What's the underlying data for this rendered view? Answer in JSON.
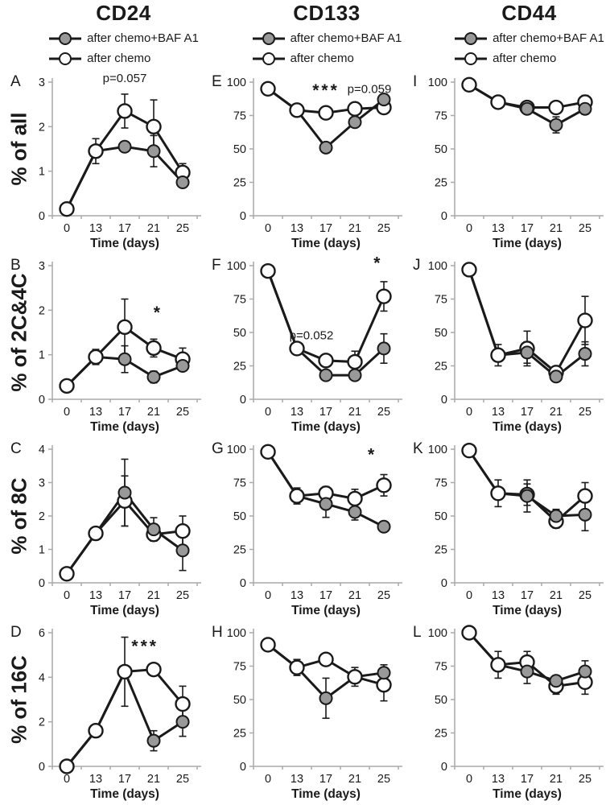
{
  "figure": {
    "column_titles": [
      "CD24",
      "CD133",
      "CD44"
    ],
    "row_labels": [
      "% of all",
      "% of 2C&4C",
      "% of 8C",
      "% of 16C"
    ],
    "legend": [
      {
        "label": "after chemo+BAF A1",
        "marker": "gray-filled-circle"
      },
      {
        "label": "after chemo",
        "marker": "open-circle"
      }
    ],
    "x_axis_label": "Time (days)",
    "x_ticks": [
      "0",
      "13",
      "17",
      "21",
      "25"
    ]
  },
  "colors": {
    "line": "#1a1a1a",
    "axis": "#a9a9a9",
    "gray_marker_fill": "#999999",
    "open_marker_fill": "#ffffff",
    "text": "#1a1a1a",
    "background": "#ffffff"
  },
  "chart_data": [
    {
      "panel": "A",
      "type": "line",
      "col": 0,
      "row": 0,
      "column_title": "CD24",
      "row_label": "% of all",
      "x": [
        0,
        13,
        17,
        21,
        25
      ],
      "ylim": [
        0,
        3
      ],
      "yticks": [
        0,
        1,
        2,
        3
      ],
      "series": [
        {
          "name": "after chemo",
          "marker": "open",
          "values": [
            0.15,
            1.45,
            2.35,
            2.0,
            0.97
          ],
          "errors": [
            0,
            0.28,
            0.38,
            0.6,
            0.2
          ],
          "markers": [
            true,
            true,
            true,
            true,
            true
          ]
        },
        {
          "name": "after chemo+BAF A1",
          "marker": "gray",
          "values": [
            0.15,
            1.45,
            1.55,
            1.45,
            0.75
          ],
          "errors": [
            0,
            0,
            0.1,
            0.35,
            0.1
          ],
          "markers": [
            false,
            false,
            true,
            true,
            true
          ]
        }
      ],
      "annotations": [
        {
          "text": "p=0.057",
          "fx": 0.5,
          "fy": -0.03,
          "kind": "p"
        }
      ]
    },
    {
      "panel": "E",
      "type": "line",
      "col": 1,
      "row": 0,
      "column_title": "CD133",
      "row_label": "% of all",
      "x": [
        0,
        13,
        17,
        21,
        25
      ],
      "ylim": [
        0,
        100
      ],
      "yticks": [
        0,
        25,
        50,
        75,
        100
      ],
      "series": [
        {
          "name": "after chemo",
          "marker": "open",
          "values": [
            95,
            79,
            77,
            80,
            81
          ],
          "errors": [
            0,
            0,
            0,
            0,
            4
          ],
          "markers": [
            true,
            true,
            true,
            true,
            true
          ]
        },
        {
          "name": "after chemo+BAF A1",
          "marker": "gray",
          "values": [
            95,
            79,
            51,
            70,
            87
          ],
          "errors": [
            0,
            0,
            0,
            0,
            3
          ],
          "markers": [
            false,
            false,
            true,
            true,
            true
          ]
        }
      ],
      "annotations": [
        {
          "text": "***",
          "fx": 0.5,
          "fy": 0.06,
          "kind": "star"
        },
        {
          "text": "p=0.059",
          "fx": 0.8,
          "fy": 0.05,
          "kind": "p"
        }
      ]
    },
    {
      "panel": "I",
      "type": "line",
      "col": 2,
      "row": 0,
      "column_title": "CD44",
      "row_label": "% of all",
      "x": [
        0,
        13,
        17,
        21,
        25
      ],
      "ylim": [
        0,
        100
      ],
      "yticks": [
        0,
        25,
        50,
        75,
        100
      ],
      "series": [
        {
          "name": "after chemo",
          "marker": "open",
          "values": [
            98,
            85,
            81,
            81,
            85
          ],
          "errors": [
            0,
            0,
            0,
            0,
            5
          ],
          "markers": [
            true,
            true,
            true,
            true,
            true
          ]
        },
        {
          "name": "after chemo+BAF A1",
          "marker": "gray",
          "values": [
            98,
            85,
            80,
            68,
            80
          ],
          "errors": [
            0,
            0,
            3,
            6,
            4
          ],
          "markers": [
            false,
            false,
            true,
            true,
            true
          ]
        }
      ],
      "annotations": []
    },
    {
      "panel": "B",
      "type": "line",
      "col": 0,
      "row": 1,
      "column_title": "CD24",
      "row_label": "% of 2C&4C",
      "x": [
        0,
        13,
        17,
        21,
        25
      ],
      "ylim": [
        0,
        3
      ],
      "yticks": [
        0,
        1,
        2,
        3
      ],
      "series": [
        {
          "name": "after chemo",
          "marker": "open",
          "values": [
            0.3,
            0.95,
            1.62,
            1.15,
            0.9
          ],
          "errors": [
            0,
            0.17,
            0.63,
            0.2,
            0.25
          ],
          "markers": [
            true,
            true,
            true,
            true,
            true
          ]
        },
        {
          "name": "after chemo+BAF A1",
          "marker": "gray",
          "values": [
            0.3,
            0.95,
            0.9,
            0.5,
            0.75
          ],
          "errors": [
            0,
            0,
            0.3,
            0.13,
            0.1
          ],
          "markers": [
            false,
            false,
            true,
            true,
            true
          ]
        }
      ],
      "annotations": [
        {
          "text": "*",
          "fx": 0.73,
          "fy": 0.35,
          "kind": "star"
        }
      ]
    },
    {
      "panel": "F",
      "type": "line",
      "col": 1,
      "row": 1,
      "column_title": "CD133",
      "row_label": "% of 2C&4C",
      "x": [
        0,
        13,
        17,
        21,
        25
      ],
      "ylim": [
        0,
        100
      ],
      "yticks": [
        0,
        25,
        50,
        75,
        100
      ],
      "series": [
        {
          "name": "after chemo",
          "marker": "open",
          "values": [
            96,
            38,
            29,
            28,
            77
          ],
          "errors": [
            0,
            2,
            4,
            8,
            11
          ],
          "markers": [
            true,
            true,
            true,
            true,
            true
          ]
        },
        {
          "name": "after chemo+BAF A1",
          "marker": "gray",
          "values": [
            96,
            38,
            18,
            18,
            38
          ],
          "errors": [
            0,
            0,
            2,
            3,
            11
          ],
          "markers": [
            false,
            false,
            true,
            true,
            true
          ]
        }
      ],
      "annotations": [
        {
          "text": "p=0.052",
          "fx": 0.4,
          "fy": 0.52,
          "kind": "p"
        },
        {
          "text": "*",
          "fx": 0.86,
          "fy": -0.02,
          "kind": "star"
        }
      ]
    },
    {
      "panel": "J",
      "type": "line",
      "col": 2,
      "row": 1,
      "column_title": "CD44",
      "row_label": "% of 2C&4C",
      "x": [
        0,
        13,
        17,
        21,
        25
      ],
      "ylim": [
        0,
        100
      ],
      "yticks": [
        0,
        25,
        50,
        75,
        100
      ],
      "series": [
        {
          "name": "after chemo",
          "marker": "open",
          "values": [
            97,
            33,
            38,
            20,
            59
          ],
          "errors": [
            0,
            8,
            13,
            3,
            18
          ],
          "markers": [
            true,
            true,
            true,
            true,
            true
          ]
        },
        {
          "name": "after chemo+BAF A1",
          "marker": "gray",
          "values": [
            97,
            33,
            35,
            17,
            34
          ],
          "errors": [
            0,
            0,
            8,
            2,
            9
          ],
          "markers": [
            false,
            false,
            true,
            true,
            true
          ]
        }
      ],
      "annotations": []
    },
    {
      "panel": "C",
      "type": "line",
      "col": 0,
      "row": 2,
      "column_title": "CD24",
      "row_label": "% of 8C",
      "x": [
        0,
        13,
        17,
        21,
        25
      ],
      "ylim": [
        0,
        4
      ],
      "yticks": [
        0,
        1,
        2,
        3,
        4
      ],
      "series": [
        {
          "name": "after chemo",
          "marker": "open",
          "values": [
            0.27,
            1.48,
            2.45,
            1.45,
            1.55
          ],
          "errors": [
            0.15,
            0.15,
            0.75,
            0.2,
            0.45
          ],
          "markers": [
            true,
            true,
            true,
            true,
            true
          ]
        },
        {
          "name": "after chemo+BAF A1",
          "marker": "gray",
          "values": [
            0.27,
            1.48,
            2.7,
            1.6,
            0.97
          ],
          "errors": [
            0,
            0,
            1.0,
            0.35,
            0.6
          ],
          "markers": [
            false,
            false,
            true,
            true,
            true
          ]
        }
      ],
      "annotations": []
    },
    {
      "panel": "G",
      "type": "line",
      "col": 1,
      "row": 2,
      "column_title": "CD133",
      "row_label": "% of 8C",
      "x": [
        0,
        13,
        17,
        21,
        25
      ],
      "ylim": [
        0,
        100
      ],
      "yticks": [
        0,
        25,
        50,
        75,
        100
      ],
      "series": [
        {
          "name": "after chemo",
          "marker": "open",
          "values": [
            98,
            65,
            67,
            63,
            73
          ],
          "errors": [
            0,
            6,
            5,
            7,
            8
          ],
          "markers": [
            true,
            true,
            true,
            true,
            true
          ]
        },
        {
          "name": "after chemo+BAF A1",
          "marker": "gray",
          "values": [
            98,
            65,
            59,
            53,
            42
          ],
          "errors": [
            0,
            0,
            10,
            6,
            2
          ],
          "markers": [
            false,
            false,
            true,
            true,
            true
          ]
        }
      ],
      "annotations": [
        {
          "text": "*",
          "fx": 0.82,
          "fy": 0.04,
          "kind": "star"
        }
      ]
    },
    {
      "panel": "K",
      "type": "line",
      "col": 2,
      "row": 2,
      "column_title": "CD44",
      "row_label": "% of 8C",
      "x": [
        0,
        13,
        17,
        21,
        25
      ],
      "ylim": [
        0,
        100
      ],
      "yticks": [
        0,
        25,
        50,
        75,
        100
      ],
      "series": [
        {
          "name": "after chemo",
          "marker": "open",
          "values": [
            99,
            67,
            66,
            46,
            65
          ],
          "errors": [
            0,
            10,
            8,
            5,
            10
          ],
          "markers": [
            true,
            true,
            true,
            true,
            true
          ]
        },
        {
          "name": "after chemo+BAF A1",
          "marker": "gray",
          "values": [
            99,
            67,
            65,
            50,
            51
          ],
          "errors": [
            0,
            0,
            12,
            5,
            12
          ],
          "markers": [
            false,
            false,
            true,
            true,
            true
          ]
        }
      ],
      "annotations": []
    },
    {
      "panel": "D",
      "type": "line",
      "col": 0,
      "row": 3,
      "column_title": "CD24",
      "row_label": "% of 16C",
      "x": [
        0,
        13,
        17,
        21,
        25
      ],
      "ylim": [
        0,
        6
      ],
      "yticks": [
        0,
        2,
        4,
        6
      ],
      "series": [
        {
          "name": "after chemo",
          "marker": "open",
          "values": [
            0,
            1.6,
            4.25,
            4.35,
            2.8
          ],
          "errors": [
            0,
            0,
            1.55,
            0.25,
            0.8
          ],
          "markers": [
            true,
            true,
            true,
            true,
            true
          ]
        },
        {
          "name": "after chemo+BAF A1",
          "marker": "gray",
          "values": [
            0,
            1.6,
            4.25,
            1.15,
            2.0
          ],
          "errors": [
            0,
            0,
            0,
            0.45,
            0.65
          ],
          "markers": [
            false,
            false,
            false,
            true,
            true
          ]
        }
      ],
      "annotations": [
        {
          "text": "***",
          "fx": 0.64,
          "fy": 0.1,
          "kind": "star"
        }
      ]
    },
    {
      "panel": "H",
      "type": "line",
      "col": 1,
      "row": 3,
      "column_title": "CD133",
      "row_label": "% of 16C",
      "x": [
        0,
        13,
        17,
        21,
        25
      ],
      "ylim": [
        0,
        100
      ],
      "yticks": [
        0,
        25,
        50,
        75,
        100
      ],
      "series": [
        {
          "name": "after chemo",
          "marker": "open",
          "values": [
            91,
            74,
            80,
            67,
            61
          ],
          "errors": [
            4,
            6,
            3,
            7,
            12
          ],
          "markers": [
            true,
            true,
            true,
            true,
            true
          ]
        },
        {
          "name": "after chemo+BAF A1",
          "marker": "gray",
          "values": [
            91,
            74,
            51,
            67,
            70
          ],
          "errors": [
            0,
            0,
            15,
            0,
            6
          ],
          "markers": [
            false,
            false,
            true,
            false,
            true
          ]
        }
      ],
      "annotations": []
    },
    {
      "panel": "L",
      "type": "line",
      "col": 2,
      "row": 3,
      "column_title": "CD44",
      "row_label": "% of 16C",
      "x": [
        0,
        13,
        17,
        21,
        25
      ],
      "ylim": [
        0,
        100
      ],
      "yticks": [
        0,
        25,
        50,
        75,
        100
      ],
      "series": [
        {
          "name": "after chemo",
          "marker": "open",
          "values": [
            100,
            76,
            78,
            60,
            63
          ],
          "errors": [
            0,
            10,
            8,
            6,
            9
          ],
          "markers": [
            true,
            true,
            true,
            true,
            true
          ]
        },
        {
          "name": "after chemo+BAF A1",
          "marker": "gray",
          "values": [
            100,
            76,
            71,
            64,
            71
          ],
          "errors": [
            0,
            0,
            9,
            4,
            8
          ],
          "markers": [
            false,
            false,
            true,
            true,
            true
          ]
        }
      ],
      "annotations": []
    }
  ]
}
